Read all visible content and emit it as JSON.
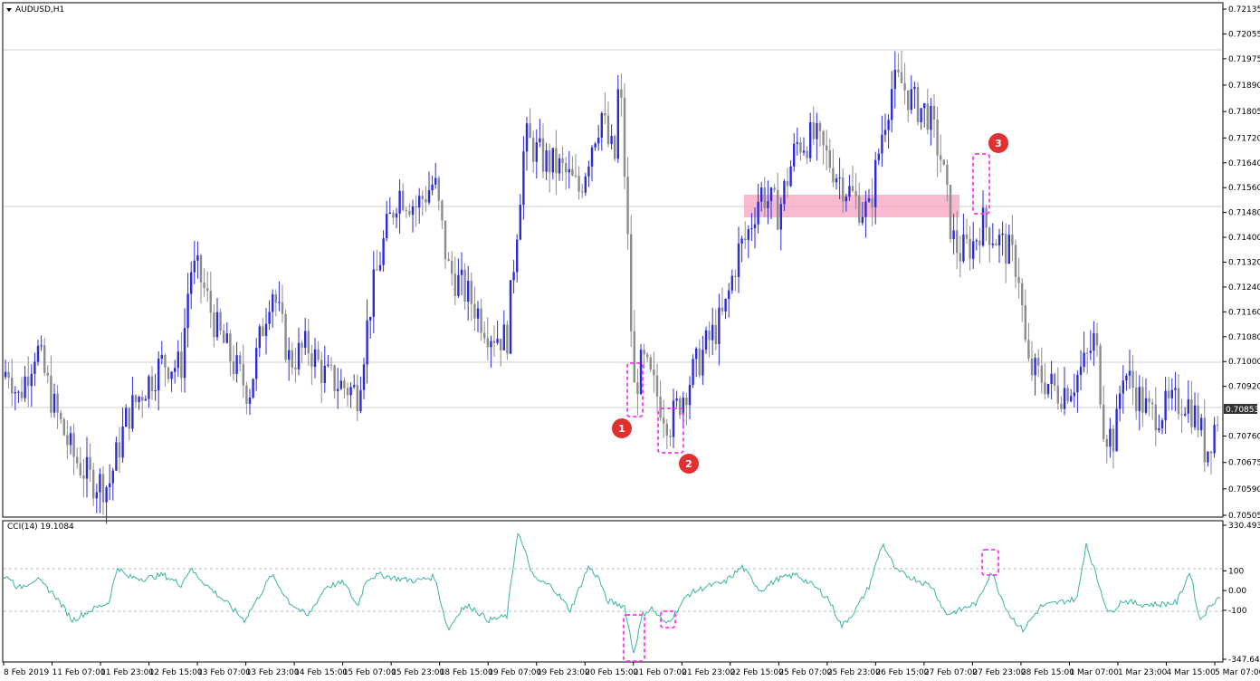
{
  "window": {
    "title": "AUDUSD,H1"
  },
  "indicator": {
    "label": "CCI(14) 19.1084"
  },
  "price_axis": {
    "labels": [
      "0.72135",
      "0.72055",
      "0.71975",
      "0.71890",
      "0.71805",
      "0.71720",
      "0.71640",
      "0.71560",
      "0.71480",
      "0.71400",
      "0.71320",
      "0.71240",
      "0.71160",
      "0.71080",
      "0.71000",
      "0.70920",
      "0.70760",
      "0.70675",
      "0.70590",
      "0.70505"
    ],
    "current_price": "0.70853"
  },
  "cci_axis": {
    "labels": [
      "330.4935",
      "100",
      "0.00",
      "-100",
      "-347.6407"
    ]
  },
  "time_axis": {
    "labels": [
      "8 Feb 2019",
      "11 Feb 07:00",
      "11 Feb 23:00",
      "12 Feb 15:00",
      "13 Feb 07:00",
      "13 Feb 23:00",
      "14 Feb 15:00",
      "15 Feb 07:00",
      "15 Feb 23:00",
      "18 Feb 15:00",
      "19 Feb 07:00",
      "19 Feb 23:00",
      "20 Feb 15:00",
      "21 Feb 07:00",
      "21 Feb 23:00",
      "22 Feb 15:00",
      "25 Feb 07:00",
      "25 Feb 23:00",
      "26 Feb 15:00",
      "27 Feb 07:00",
      "27 Feb 23:00",
      "28 Feb 15:00",
      "1 Mar 07:00",
      "1 Mar 23:00",
      "4 Mar 15:00",
      "5 Mar 07:00"
    ]
  },
  "annotations": {
    "marker1": "1",
    "marker2": "2",
    "marker3": "3"
  },
  "colors": {
    "bull": "#2b2bd8",
    "bear": "#8c8c8c",
    "cci": "#3bb3a3",
    "marker": "#e03030",
    "box": "#ff33ff",
    "zone": "#f4a3bd"
  },
  "chart_data": {
    "type": "candlestick",
    "symbol": "AUDUSD",
    "timeframe": "H1",
    "ylim": [
      0.70505,
      0.72135
    ],
    "current_price": 0.70853,
    "close_path": [
      [
        0,
        0.7095
      ],
      [
        10,
        0.7098
      ],
      [
        20,
        0.7088
      ],
      [
        40,
        0.7105
      ],
      [
        60,
        0.7085
      ],
      [
        80,
        0.707
      ],
      [
        100,
        0.7062
      ],
      [
        120,
        0.706
      ],
      [
        140,
        0.7082
      ],
      [
        160,
        0.7092
      ],
      [
        180,
        0.71
      ],
      [
        200,
        0.7098
      ],
      [
        210,
        0.713
      ],
      [
        220,
        0.7128
      ],
      [
        240,
        0.711
      ],
      [
        260,
        0.7098
      ],
      [
        275,
        0.709
      ],
      [
        300,
        0.7125
      ],
      [
        320,
        0.71
      ],
      [
        340,
        0.7105
      ],
      [
        360,
        0.7095
      ],
      [
        380,
        0.7092
      ],
      [
        395,
        0.709
      ],
      [
        410,
        0.712
      ],
      [
        425,
        0.714
      ],
      [
        440,
        0.7155
      ],
      [
        460,
        0.715
      ],
      [
        480,
        0.7158
      ],
      [
        495,
        0.713
      ],
      [
        520,
        0.712
      ],
      [
        540,
        0.711
      ],
      [
        560,
        0.7107
      ],
      [
        570,
        0.714
      ],
      [
        580,
        0.7172
      ],
      [
        600,
        0.7165
      ],
      [
        620,
        0.7162
      ],
      [
        640,
        0.7155
      ],
      [
        655,
        0.7172
      ],
      [
        665,
        0.718
      ],
      [
        672,
        0.717
      ],
      [
        680,
        0.7165
      ],
      [
        684,
        0.7195
      ],
      [
        692,
        0.715
      ],
      [
        700,
        0.709
      ],
      [
        710,
        0.71
      ],
      [
        720,
        0.7093
      ],
      [
        740,
        0.708
      ],
      [
        760,
        0.7093
      ],
      [
        780,
        0.7105
      ],
      [
        800,
        0.7115
      ],
      [
        815,
        0.7135
      ],
      [
        825,
        0.714
      ],
      [
        840,
        0.7155
      ],
      [
        860,
        0.7148
      ],
      [
        880,
        0.717
      ],
      [
        900,
        0.7172
      ],
      [
        915,
        0.7165
      ],
      [
        930,
        0.7158
      ],
      [
        950,
        0.715
      ],
      [
        960,
        0.7148
      ],
      [
        975,
        0.7175
      ],
      [
        985,
        0.7188
      ],
      [
        995,
        0.719
      ],
      [
        1010,
        0.7183
      ],
      [
        1025,
        0.718
      ],
      [
        1040,
        0.7165
      ],
      [
        1052,
        0.714
      ],
      [
        1060,
        0.7135
      ],
      [
        1075,
        0.7138
      ],
      [
        1085,
        0.7145
      ],
      [
        1100,
        0.714
      ],
      [
        1115,
        0.7135
      ],
      [
        1125,
        0.713
      ],
      [
        1135,
        0.7098
      ],
      [
        1150,
        0.7095
      ],
      [
        1170,
        0.709
      ],
      [
        1185,
        0.7093
      ],
      [
        1200,
        0.71
      ],
      [
        1210,
        0.7108
      ],
      [
        1220,
        0.7078
      ],
      [
        1232,
        0.7075
      ],
      [
        1240,
        0.7098
      ],
      [
        1255,
        0.709
      ],
      [
        1270,
        0.7083
      ],
      [
        1290,
        0.7085
      ],
      [
        1310,
        0.7088
      ],
      [
        1325,
        0.708
      ],
      [
        1332,
        0.707
      ],
      [
        1340,
        0.7078
      ],
      [
        1348,
        0.7085
      ]
    ],
    "cci_ylim": [
      -347.6407,
      330.4935
    ],
    "cci_path": [
      [
        0,
        50
      ],
      [
        10,
        70
      ],
      [
        20,
        10
      ],
      [
        40,
        60
      ],
      [
        60,
        -20
      ],
      [
        80,
        -150
      ],
      [
        100,
        -100
      ],
      [
        120,
        -60
      ],
      [
        130,
        120
      ],
      [
        140,
        70
      ],
      [
        160,
        60
      ],
      [
        180,
        80
      ],
      [
        200,
        30
      ],
      [
        210,
        110
      ],
      [
        230,
        20
      ],
      [
        250,
        -60
      ],
      [
        270,
        -150
      ],
      [
        290,
        0
      ],
      [
        300,
        80
      ],
      [
        320,
        -60
      ],
      [
        340,
        -130
      ],
      [
        360,
        20
      ],
      [
        380,
        40
      ],
      [
        395,
        -80
      ],
      [
        405,
        60
      ],
      [
        420,
        80
      ],
      [
        440,
        60
      ],
      [
        460,
        50
      ],
      [
        480,
        70
      ],
      [
        495,
        -200
      ],
      [
        510,
        -90
      ],
      [
        520,
        -80
      ],
      [
        540,
        -150
      ],
      [
        560,
        -130
      ],
      [
        572,
        300
      ],
      [
        590,
        60
      ],
      [
        610,
        20
      ],
      [
        630,
        -100
      ],
      [
        650,
        120
      ],
      [
        662,
        60
      ],
      [
        670,
        -50
      ],
      [
        690,
        -80
      ],
      [
        700,
        -315
      ],
      [
        710,
        -120
      ],
      [
        720,
        -90
      ],
      [
        735,
        -170
      ],
      [
        745,
        -120
      ],
      [
        760,
        -20
      ],
      [
        780,
        20
      ],
      [
        800,
        40
      ],
      [
        820,
        120
      ],
      [
        840,
        0
      ],
      [
        860,
        60
      ],
      [
        880,
        80
      ],
      [
        900,
        20
      ],
      [
        915,
        -40
      ],
      [
        930,
        -180
      ],
      [
        945,
        -100
      ],
      [
        960,
        20
      ],
      [
        975,
        240
      ],
      [
        990,
        100
      ],
      [
        1010,
        60
      ],
      [
        1030,
        20
      ],
      [
        1045,
        -120
      ],
      [
        1060,
        -100
      ],
      [
        1080,
        -60
      ],
      [
        1095,
        100
      ],
      [
        1105,
        -20
      ],
      [
        1115,
        -120
      ],
      [
        1130,
        -200
      ],
      [
        1150,
        -80
      ],
      [
        1170,
        -60
      ],
      [
        1190,
        -40
      ],
      [
        1200,
        240
      ],
      [
        1212,
        60
      ],
      [
        1225,
        -120
      ],
      [
        1240,
        -50
      ],
      [
        1260,
        -70
      ],
      [
        1280,
        -70
      ],
      [
        1300,
        -60
      ],
      [
        1315,
        100
      ],
      [
        1325,
        -150
      ],
      [
        1340,
        -60
      ],
      [
        1348,
        -30
      ]
    ]
  }
}
